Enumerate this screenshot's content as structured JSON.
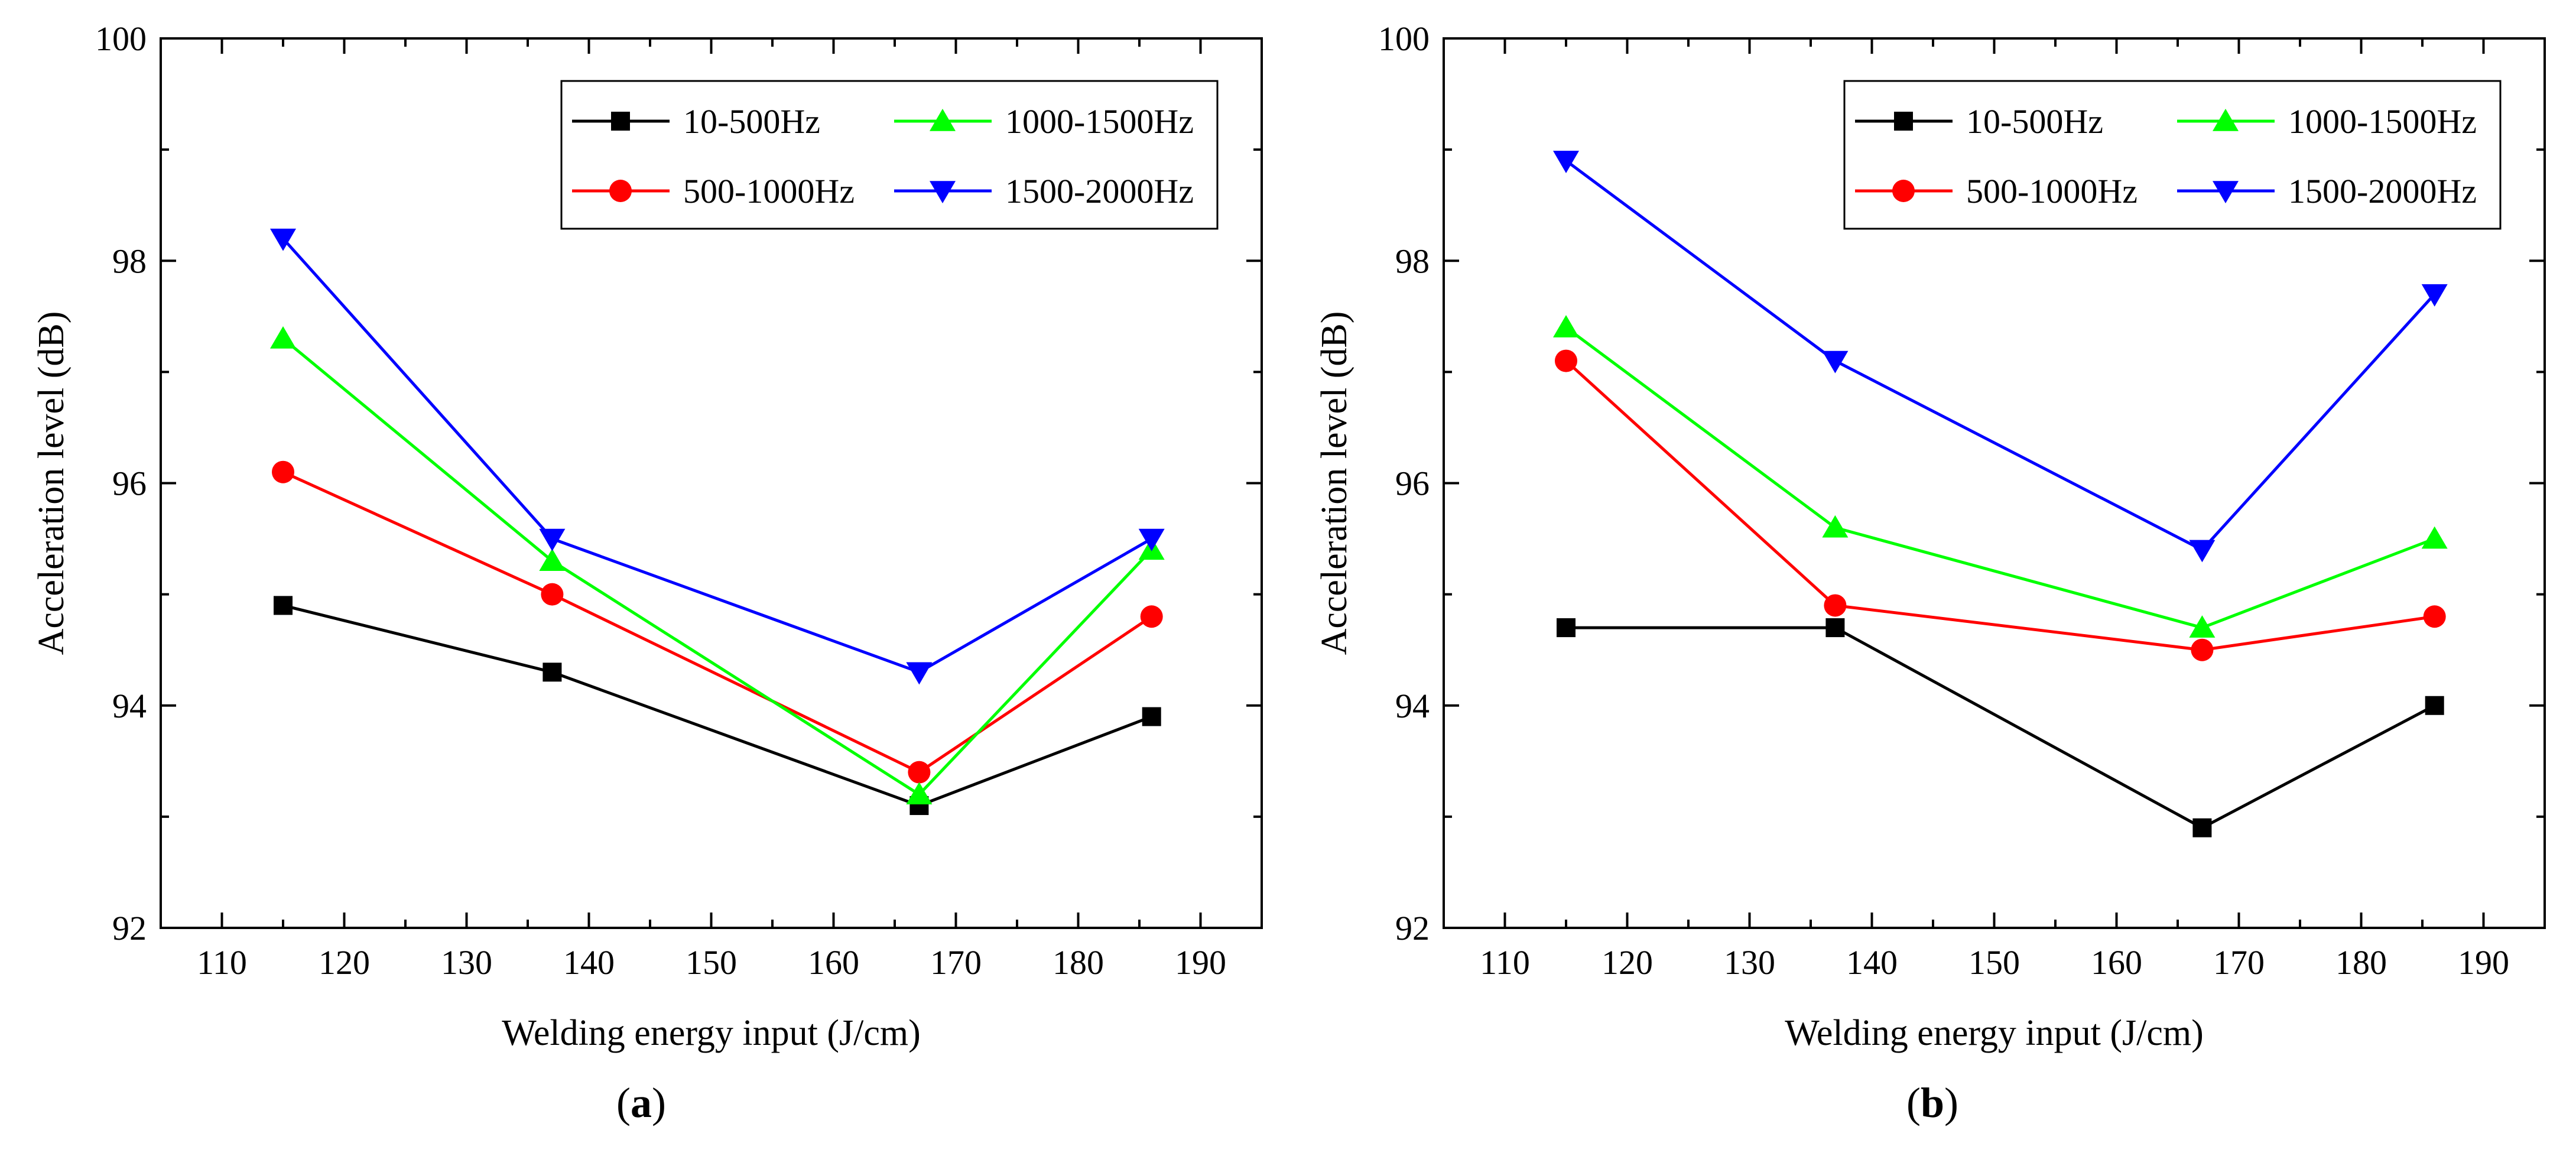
{
  "chart_data": [
    {
      "type": "line",
      "panel_label": "a",
      "xlabel": "Welding energy input (J/cm)",
      "ylabel": "Acceleration level (dB)",
      "xlim": [
        105,
        195
      ],
      "ylim": [
        92,
        100
      ],
      "x_ticks": [
        110,
        120,
        130,
        140,
        150,
        160,
        170,
        180,
        190
      ],
      "y_ticks": [
        92,
        94,
        96,
        98,
        100
      ],
      "legend_position": "top-right",
      "x": [
        115,
        137,
        167,
        186
      ],
      "series": [
        {
          "name": "10-500Hz",
          "color": "#000000",
          "marker": "square",
          "values": [
            94.9,
            94.3,
            93.1,
            93.9
          ]
        },
        {
          "name": "500-1000Hz",
          "color": "#ff0000",
          "marker": "circle",
          "values": [
            96.1,
            95.0,
            93.4,
            94.8
          ]
        },
        {
          "name": "1000-1500Hz",
          "color": "#00ff00",
          "marker": "triangle-up",
          "values": [
            97.3,
            95.3,
            93.2,
            95.4
          ]
        },
        {
          "name": "1500-2000Hz",
          "color": "#0000ff",
          "marker": "triangle-down",
          "values": [
            98.2,
            95.5,
            94.3,
            95.5
          ]
        }
      ]
    },
    {
      "type": "line",
      "panel_label": "b",
      "xlabel": "Welding energy input (J/cm)",
      "ylabel": "Acceleration level (dB)",
      "xlim": [
        105,
        195
      ],
      "ylim": [
        92,
        100
      ],
      "x_ticks": [
        110,
        120,
        130,
        140,
        150,
        160,
        170,
        180,
        190
      ],
      "y_ticks": [
        92,
        94,
        96,
        98,
        100
      ],
      "legend_position": "top-right",
      "x": [
        115,
        137,
        167,
        186
      ],
      "series": [
        {
          "name": "10-500Hz",
          "color": "#000000",
          "marker": "square",
          "values": [
            94.7,
            94.7,
            92.9,
            94.0
          ]
        },
        {
          "name": "500-1000Hz",
          "color": "#ff0000",
          "marker": "circle",
          "values": [
            97.1,
            94.9,
            94.5,
            94.8
          ]
        },
        {
          "name": "1000-1500Hz",
          "color": "#00ff00",
          "marker": "triangle-up",
          "values": [
            97.4,
            95.6,
            94.7,
            95.5
          ]
        },
        {
          "name": "1500-2000Hz",
          "color": "#0000ff",
          "marker": "triangle-down",
          "values": [
            98.9,
            97.1,
            95.4,
            97.7
          ]
        }
      ]
    }
  ]
}
